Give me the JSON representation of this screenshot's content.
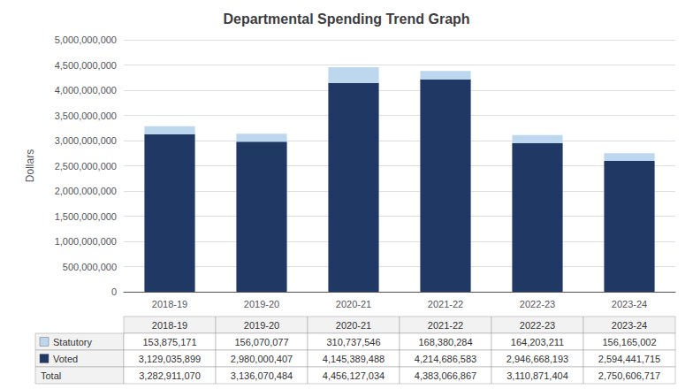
{
  "chart_data": {
    "type": "bar",
    "title": "Departmental Spending Trend Graph",
    "categories": [
      "2018-19",
      "2019-20",
      "2020-21",
      "2021-22",
      "2022-23",
      "2023-24"
    ],
    "ylabel": "Dollars",
    "stacked": true,
    "grid": true,
    "series": [
      {
        "name": "Voted",
        "color": "#1F3864",
        "values": [
          3129035899,
          2980000407,
          4145389488,
          4214686583,
          2946668193,
          2594441715
        ]
      },
      {
        "name": "Statutory",
        "color": "#BDD7EE",
        "values": [
          153875171,
          156070077,
          310737546,
          168380284,
          164203211,
          156165002
        ]
      }
    ],
    "ylim": [
      0,
      5000000000
    ],
    "yticks": [
      0,
      {
        "value": 500000000,
        "label": "500,000,000"
      },
      {
        "value": 1000000000,
        "label": "1,000,000,000"
      },
      {
        "value": 1500000000,
        "label": "1,500,000,000"
      },
      {
        "value": 2000000000,
        "label": "2,000,000,000"
      },
      {
        "value": 2500000000,
        "label": "2,500,000,000"
      },
      {
        "value": 3000000000,
        "label": "3,000,000,000"
      },
      {
        "value": 3500000000,
        "label": "3,500,000,000"
      },
      {
        "value": 4000000000,
        "label": "4,000,000,000"
      },
      {
        "value": 4500000000,
        "label": "4,500,000,000"
      },
      {
        "value": 5000000000,
        "label": "5,000,000,000"
      }
    ],
    "table": {
      "rows": [
        {
          "name": "Statutory",
          "labels": [
            "153,875,171",
            "156,070,077",
            "310,737,546",
            "168,380,284",
            "164,203,211",
            "156,165,002"
          ]
        },
        {
          "name": "Voted",
          "labels": [
            "3,129,035,899",
            "2,980,000,407",
            "4,145,389,488",
            "4,214,686,583",
            "2,946,668,193",
            "2,594,441,715"
          ]
        },
        {
          "name": "Total",
          "values": [
            3282911070,
            3136070484,
            4456127034,
            4383066867,
            3110871404,
            2750606717
          ],
          "labels": [
            "3,282,911,070",
            "3,136,070,484",
            "4,456,127,034",
            "4,383,066,867",
            "3,110,871,404",
            "2,750,606,717"
          ]
        }
      ]
    }
  }
}
